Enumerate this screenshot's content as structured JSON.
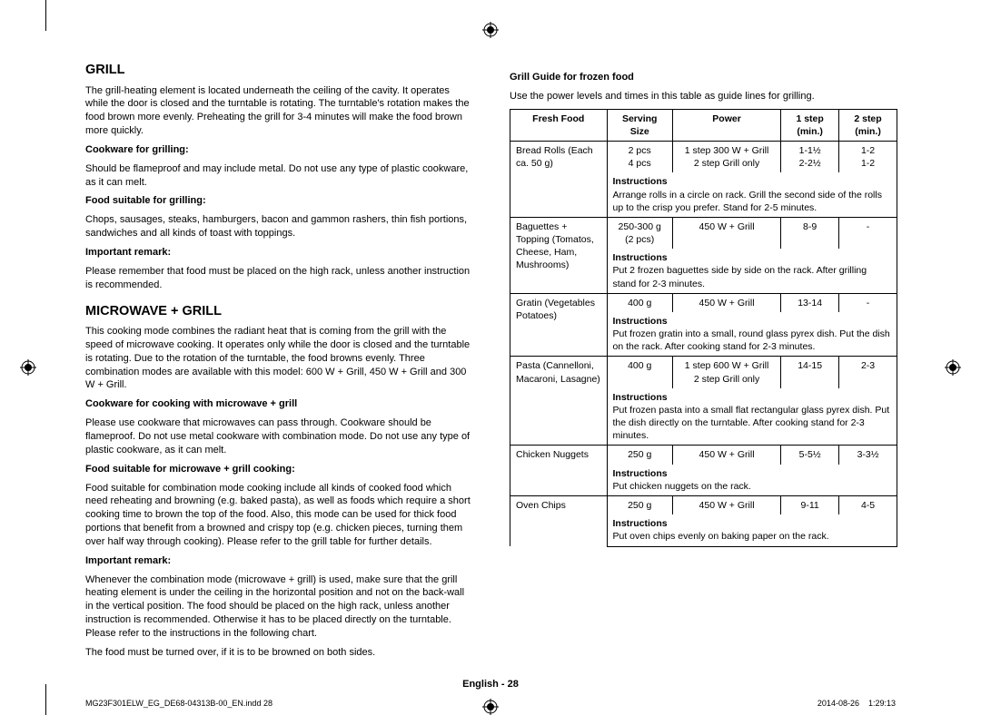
{
  "left": {
    "h_grill": "GRILL",
    "grill_intro": "The grill-heating element is located underneath the ceiling of the cavity. It operates while the door is closed and the turntable is rotating. The turntable's rotation makes the food brown more evenly. Preheating the grill for 3-4 minutes will make the food brown more quickly.",
    "cookware_h": "Cookware for grilling:",
    "cookware_t": "Should be flameproof and may include metal. Do not use any type of plastic cookware, as it can melt.",
    "food_h": "Food suitable for grilling:",
    "food_t": "Chops, sausages, steaks, hamburgers, bacon and gammon rashers, thin fish portions, sandwiches and all kinds of toast with toppings.",
    "remark_h": "Important remark:",
    "remark_t": "Please remember that food must be placed on the high rack, unless another instruction is recommended.",
    "h_mw": "MICROWAVE + GRILL",
    "mw_intro": "This cooking mode combines the radiant heat that is coming from the grill with the speed of microwave cooking. It operates only while the door is closed and the turntable is rotating. Due to the rotation of the turntable, the food browns evenly. Three combination modes are available with this model: 600 W + Grill, 450 W + Grill and 300 W + Grill.",
    "mw_cook_h": "Cookware for cooking with microwave + grill",
    "mw_cook_t": "Please use cookware that microwaves can pass through. Cookware should be flameproof. Do not use metal cookware with combination mode. Do not use any type of plastic cookware, as it can melt.",
    "mw_food_h": "Food suitable for microwave + grill cooking:",
    "mw_food_t": "Food suitable for combination mode cooking include all kinds of cooked food which need reheating and browning (e.g. baked pasta), as well as foods which require a short cooking time to brown the top of the food. Also, this mode can be used for thick food portions that benefit from a browned and crispy top (e.g. chicken pieces, turning them over half way through cooking). Please refer to the grill table for further details.",
    "mw_remark_h": "Important remark:",
    "mw_remark_t": "Whenever the combination mode (microwave + grill) is used, make sure that the grill heating element is under the ceiling in the horizontal position and not on the back-wall in the vertical position. The food should be placed on the high rack, unless another instruction is recommended. Otherwise it has to be placed directly on the turntable. Please refer to the instructions in the following chart.",
    "mw_remark_t2": "The food must be turned over, if it is to be browned on both sides."
  },
  "right": {
    "title": "Grill Guide for frozen food",
    "intro": "Use the power levels and times in this table as guide lines for grilling.",
    "instr_label": "Instructions",
    "headers": {
      "c1": "Fresh Food",
      "c2": "Serving Size",
      "c3": "Power",
      "c4": "1 step (min.)",
      "c5": "2 step (min.)"
    },
    "rows": [
      {
        "food": "Bread Rolls (Each ca. 50 g)",
        "size": "2 pcs\n4 pcs",
        "power": "1 step 300 W + Grill\n2 step Grill only",
        "s1": "1-1½\n2-2½",
        "s2": "1-2\n1-2",
        "instr": "Arrange rolls in a circle on rack. Grill the second side of the rolls up to the crisp you prefer. Stand for 2-5 minutes."
      },
      {
        "food": "Baguettes + Topping (Tomatos, Cheese, Ham, Mushrooms)",
        "size": "250-300 g (2 pcs)",
        "power": "450 W + Grill",
        "s1": "8-9",
        "s2": "-",
        "instr": "Put 2 frozen baguettes side by side on the rack. After grilling stand for 2-3 minutes."
      },
      {
        "food": "Gratin (Vegetables Potatoes)",
        "size": "400 g",
        "power": "450 W + Grill",
        "s1": "13-14",
        "s2": "-",
        "instr": "Put frozen gratin into a small, round glass pyrex dish. Put the dish on the rack. After cooking stand for 2-3 minutes."
      },
      {
        "food": "Pasta (Cannelloni, Macaroni, Lasagne)",
        "size": "400 g",
        "power": "1 step 600 W + Grill\n2 step Grill only",
        "s1": "14-15",
        "s2": "2-3",
        "instr": "Put frozen pasta into a small flat rectangular glass pyrex dish. Put the dish directly on the turntable. After cooking stand for 2-3 minutes."
      },
      {
        "food": "Chicken Nuggets",
        "size": "250 g",
        "power": "450 W + Grill",
        "s1": "5-5½",
        "s2": "3-3½",
        "instr": "Put chicken nuggets on the rack."
      },
      {
        "food": "Oven Chips",
        "size": "250 g",
        "power": "450 W + Grill",
        "s1": "9-11",
        "s2": "4-5",
        "instr": "Put oven chips evenly on baking paper on the rack."
      }
    ]
  },
  "footer": {
    "center": "English - 28",
    "left": "MG23F301ELW_EG_DE68-04313B-00_EN.indd   28",
    "right": "2014-08-26     1:29:13"
  }
}
